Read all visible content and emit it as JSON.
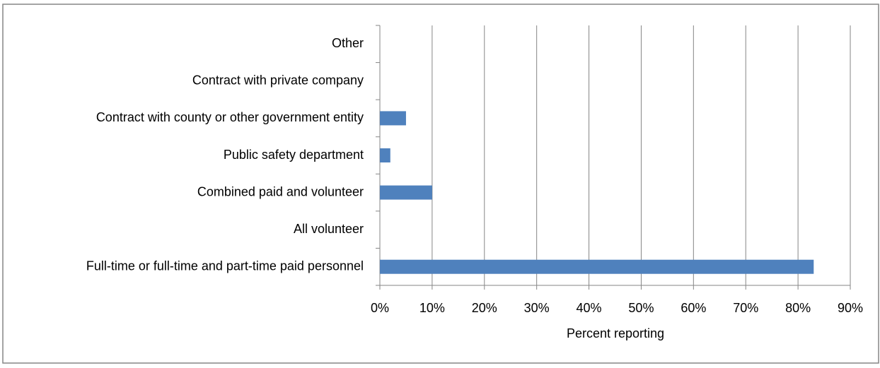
{
  "chart_data": {
    "type": "bar",
    "orientation": "horizontal",
    "categories": [
      "Full-time or full-time and part-time paid personnel",
      "All volunteer",
      "Combined paid and volunteer",
      "Public safety department",
      "Contract with county or other government entity",
      "Contract with private company",
      "Other"
    ],
    "values": [
      83,
      0,
      10,
      2,
      5,
      0,
      0
    ],
    "color": "#4f81bd",
    "xlabel": "Percent reporting",
    "xlim": [
      0,
      90
    ],
    "xticks": [
      {
        "value": 0,
        "label": "0%"
      },
      {
        "value": 10,
        "label": "10%"
      },
      {
        "value": 20,
        "label": "20%"
      },
      {
        "value": 30,
        "label": "30%"
      },
      {
        "value": 40,
        "label": "40%"
      },
      {
        "value": 50,
        "label": "50%"
      },
      {
        "value": 60,
        "label": "60%"
      },
      {
        "value": 70,
        "label": "70%"
      },
      {
        "value": 80,
        "label": "80%"
      },
      {
        "value": 90,
        "label": "90%"
      }
    ],
    "grid": true
  }
}
